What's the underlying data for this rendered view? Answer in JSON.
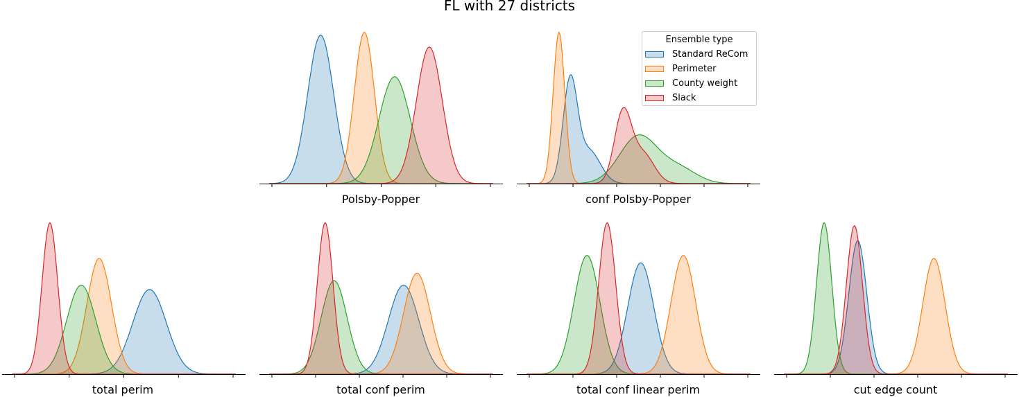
{
  "figure": {
    "title": "FL with 27 districts"
  },
  "legend": {
    "title": "Ensemble type",
    "items": [
      {
        "label": "Standard ReCom",
        "color": "#1f77b4"
      },
      {
        "label": "Perimeter",
        "color": "#ff7f0e"
      },
      {
        "label": "County weight",
        "color": "#2ca02c"
      },
      {
        "label": "Slack",
        "color": "#d62728"
      }
    ]
  },
  "chart_data": [
    {
      "type": "area",
      "xlabel": "Polsby-Popper",
      "xlim": [
        0,
        1
      ],
      "ylim": [
        0,
        1.05
      ],
      "x_ticks": 5,
      "series": [
        {
          "name": "Standard ReCom",
          "color": "#1f77b4",
          "components": [
            {
              "c": 0.23,
              "s": 0.058,
              "a": 1.0
            }
          ]
        },
        {
          "name": "Perimeter",
          "color": "#ff7f0e",
          "components": [
            {
              "c": 0.425,
              "s": 0.045,
              "a": 1.02
            }
          ]
        },
        {
          "name": "County weight",
          "color": "#2ca02c",
          "components": [
            {
              "c": 0.56,
              "s": 0.07,
              "a": 0.72
            }
          ]
        },
        {
          "name": "Slack",
          "color": "#d62728",
          "components": [
            {
              "c": 0.715,
              "s": 0.058,
              "a": 0.92
            }
          ]
        }
      ]
    },
    {
      "type": "area",
      "xlabel": "conf Polsby-Popper",
      "xlim": [
        0,
        1
      ],
      "ylim": [
        0,
        1.05
      ],
      "x_ticks": 6,
      "series": [
        {
          "name": "Standard ReCom",
          "color": "#1f77b4",
          "components": [
            {
              "c": 0.195,
              "s": 0.032,
              "a": 0.68
            },
            {
              "c": 0.28,
              "s": 0.05,
              "a": 0.22
            }
          ]
        },
        {
          "name": "Perimeter",
          "color": "#ff7f0e",
          "components": [
            {
              "c": 0.145,
              "s": 0.026,
              "a": 1.02
            }
          ]
        },
        {
          "name": "County weight",
          "color": "#2ca02c",
          "components": [
            {
              "c": 0.5,
              "s": 0.085,
              "a": 0.32
            },
            {
              "c": 0.68,
              "s": 0.08,
              "a": 0.1
            }
          ]
        },
        {
          "name": "Slack",
          "color": "#d62728",
          "components": [
            {
              "c": 0.43,
              "s": 0.038,
              "a": 0.47
            },
            {
              "c": 0.52,
              "s": 0.05,
              "a": 0.2
            }
          ]
        }
      ]
    },
    {
      "type": "area",
      "xlabel": "total perim",
      "xlim": [
        0,
        1
      ],
      "ylim": [
        0,
        1.05
      ],
      "x_ticks": 5,
      "series": [
        {
          "name": "Standard ReCom",
          "color": "#1f77b4",
          "components": [
            {
              "c": 0.615,
              "s": 0.075,
              "a": 0.57
            }
          ]
        },
        {
          "name": "Perimeter",
          "color": "#ff7f0e",
          "components": [
            {
              "c": 0.39,
              "s": 0.055,
              "a": 0.78
            }
          ]
        },
        {
          "name": "County weight",
          "color": "#2ca02c",
          "components": [
            {
              "c": 0.31,
              "s": 0.065,
              "a": 0.6
            }
          ]
        },
        {
          "name": "Slack",
          "color": "#d62728",
          "components": [
            {
              "c": 0.17,
              "s": 0.035,
              "a": 1.02
            }
          ]
        }
      ]
    },
    {
      "type": "area",
      "xlabel": "total conf perim",
      "xlim": [
        0,
        1
      ],
      "ylim": [
        0,
        1.05
      ],
      "x_ticks": 6,
      "series": [
        {
          "name": "Standard ReCom",
          "color": "#1f77b4",
          "components": [
            {
              "c": 0.6,
              "s": 0.068,
              "a": 0.6
            }
          ]
        },
        {
          "name": "Perimeter",
          "color": "#ff7f0e",
          "components": [
            {
              "c": 0.66,
              "s": 0.06,
              "a": 0.68
            }
          ]
        },
        {
          "name": "County weight",
          "color": "#2ca02c",
          "components": [
            {
              "c": 0.29,
              "s": 0.058,
              "a": 0.63
            }
          ]
        },
        {
          "name": "Slack",
          "color": "#d62728",
          "components": [
            {
              "c": 0.25,
              "s": 0.035,
              "a": 1.02
            }
          ]
        }
      ]
    },
    {
      "type": "area",
      "xlabel": "total conf linear perim",
      "xlim": [
        0,
        1
      ],
      "ylim": [
        0,
        1.05
      ],
      "x_ticks": 6,
      "series": [
        {
          "name": "Standard ReCom",
          "color": "#1f77b4",
          "components": [
            {
              "c": 0.51,
              "s": 0.058,
              "a": 0.75
            }
          ]
        },
        {
          "name": "Perimeter",
          "color": "#ff7f0e",
          "components": [
            {
              "c": 0.7,
              "s": 0.055,
              "a": 0.8
            }
          ]
        },
        {
          "name": "County weight",
          "color": "#2ca02c",
          "components": [
            {
              "c": 0.27,
              "s": 0.058,
              "a": 0.8
            }
          ]
        },
        {
          "name": "Slack",
          "color": "#d62728",
          "components": [
            {
              "c": 0.36,
              "s": 0.038,
              "a": 1.02
            }
          ]
        }
      ]
    },
    {
      "type": "area",
      "xlabel": "cut edge count",
      "xlim": [
        0,
        1
      ],
      "ylim": [
        0,
        1.05
      ],
      "x_ticks": 6,
      "series": [
        {
          "name": "Standard ReCom",
          "color": "#1f77b4",
          "components": [
            {
              "c": 0.33,
              "s": 0.04,
              "a": 0.9
            }
          ]
        },
        {
          "name": "Perimeter",
          "color": "#ff7f0e",
          "components": [
            {
              "c": 0.67,
              "s": 0.05,
              "a": 0.78
            }
          ]
        },
        {
          "name": "County weight",
          "color": "#2ca02c",
          "components": [
            {
              "c": 0.18,
              "s": 0.034,
              "a": 1.02
            }
          ]
        },
        {
          "name": "Slack",
          "color": "#d62728",
          "components": [
            {
              "c": 0.315,
              "s": 0.036,
              "a": 1.0
            }
          ]
        }
      ]
    }
  ]
}
